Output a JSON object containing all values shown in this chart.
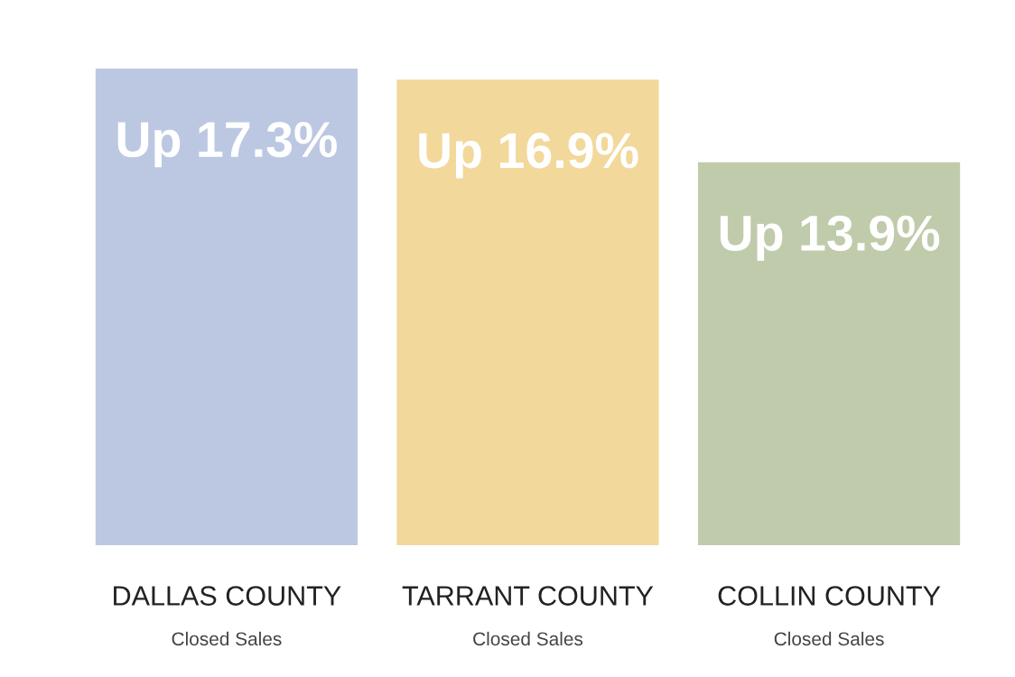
{
  "chart_data": {
    "type": "bar",
    "categories": [
      "DALLAS COUNTY\nClosed Sales",
      "TARRANT COUNTY\nClosed Sales",
      "COLLIN COUNTY\nClosed Sales"
    ],
    "values": [
      17.3,
      16.9,
      13.9
    ],
    "colors": [
      "#bcc8e2",
      "#f2d89a",
      "#c0cbab"
    ],
    "value_labels": [
      "Up 17.3%",
      "Up 16.9%",
      "Up 13.9%"
    ],
    "grid": false,
    "legend": false
  }
}
